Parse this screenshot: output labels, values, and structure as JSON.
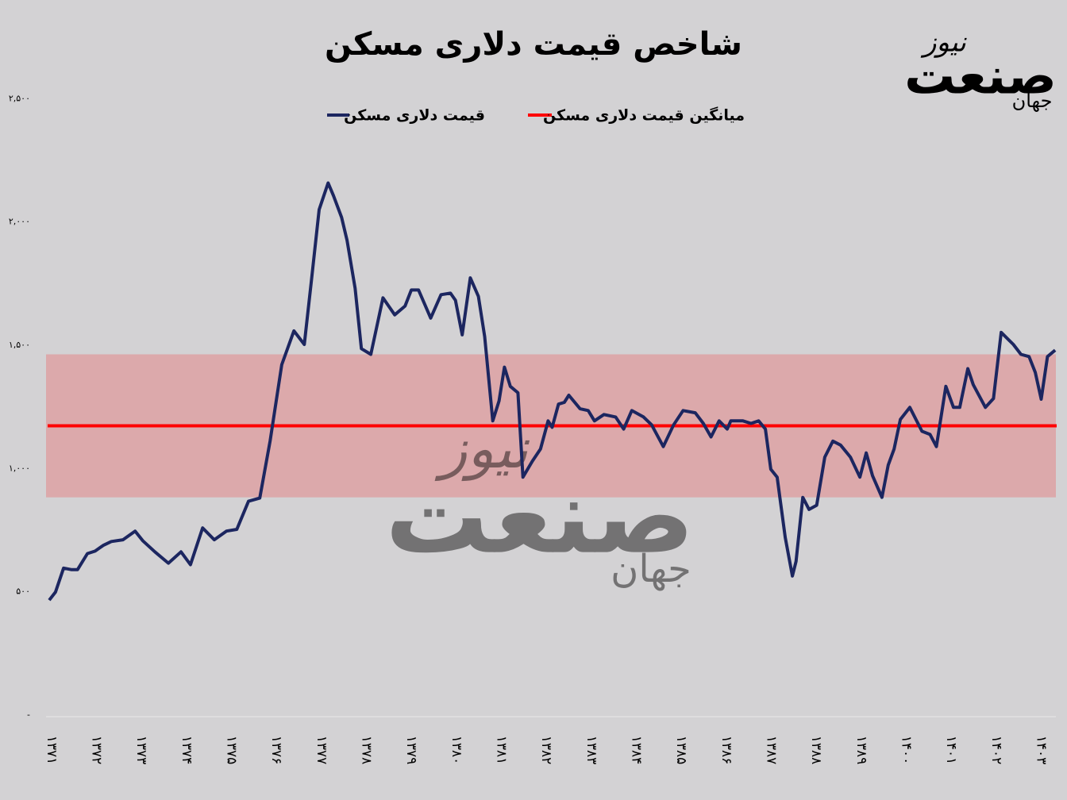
{
  "chart_data": {
    "type": "line",
    "title": "شاخص قیمت دلاری مسکن",
    "logo": {
      "main": "صنعت",
      "sub": "نیوز",
      "prefix": "جهان"
    },
    "xlim": [
      -0.12,
      22.45
    ],
    "xticks": [
      {
        "value": 0,
        "label": "۱۳۷۱"
      },
      {
        "value": 1,
        "label": "۱۳۷۲"
      },
      {
        "value": 2,
        "label": "۱۳۷۳"
      },
      {
        "value": 3,
        "label": "۱۳۷۴"
      },
      {
        "value": 4,
        "label": "۱۳۷۵"
      },
      {
        "value": 5,
        "label": "۱۳۷۶"
      },
      {
        "value": 6,
        "label": "۱۳۷۷"
      },
      {
        "value": 7,
        "label": "۱۳۷۸"
      },
      {
        "value": 8,
        "label": "۱۳۷۹"
      },
      {
        "value": 9,
        "label": "۱۳۸۰"
      },
      {
        "value": 10,
        "label": "۱۳۸۱"
      },
      {
        "value": 11,
        "label": "۱۳۸۲"
      },
      {
        "value": 12,
        "label": "۱۳۸۳"
      },
      {
        "value": 13,
        "label": "۱۳۸۴"
      },
      {
        "value": 14,
        "label": "۱۳۸۵"
      },
      {
        "value": 15,
        "label": "۱۳۸۶"
      },
      {
        "value": 16,
        "label": "۱۳۸۷"
      },
      {
        "value": 17,
        "label": "۱۳۸۸"
      },
      {
        "value": 18,
        "label": "۱۳۸۹"
      },
      {
        "value": 19,
        "label": "۱۴۰۰"
      },
      {
        "value": 20,
        "label": "۱۴۰۱"
      },
      {
        "value": 21,
        "label": "۱۴۰۲"
      },
      {
        "value": 22,
        "label": "۱۴۰۳"
      }
    ],
    "ylim": [
      0,
      2600
    ],
    "yticks": [
      {
        "value": 0,
        "label": "-"
      },
      {
        "value": 500,
        "label": "۵۰۰"
      },
      {
        "value": 1000,
        "label": "۱,۰۰۰"
      },
      {
        "value": 1500,
        "label": "۱,۵۰۰"
      },
      {
        "value": 2000,
        "label": "۲,۰۰۰"
      },
      {
        "value": 2500,
        "label": "۲,۵۰۰"
      }
    ],
    "band": [
      883,
      1463
    ],
    "band_color": "#dca9ab",
    "average": {
      "name": "میانگین قیمت دلاری مسکن",
      "color": "#ff0000",
      "value": 1173
    },
    "x": [
      -0.05,
      0.09,
      0.27,
      0.44,
      0.58,
      0.8,
      0.97,
      1.15,
      1.33,
      1.59,
      1.86,
      2.03,
      2.3,
      2.6,
      2.88,
      3.09,
      3.36,
      3.62,
      3.89,
      4.12,
      4.38,
      4.63,
      4.86,
      5.12,
      5.39,
      5.62,
      5.78,
      5.95,
      6.15,
      6.27,
      6.45,
      6.57,
      6.75,
      6.89,
      7.1,
      7.37,
      7.63,
      7.86,
      8.0,
      8.16,
      8.43,
      8.66,
      8.87,
      8.98,
      9.13,
      9.31,
      9.49,
      9.63,
      9.81,
      9.95,
      10.07,
      10.2,
      10.37,
      10.48,
      10.69,
      10.87,
      11.04,
      11.13,
      11.27,
      11.4,
      11.5,
      11.75,
      11.93,
      12.07,
      12.28,
      12.54,
      12.72,
      12.9,
      13.16,
      13.34,
      13.6,
      13.83,
      14.04,
      14.31,
      14.49,
      14.66,
      14.84,
      15.02,
      15.1,
      15.37,
      15.55,
      15.72,
      15.87,
      15.99,
      16.13,
      16.31,
      16.47,
      16.55,
      16.7,
      16.84,
      17.01,
      17.19,
      17.37,
      17.54,
      17.76,
      17.97,
      18.11,
      18.25,
      18.46,
      18.6,
      18.73,
      18.87,
      19.08,
      19.35,
      19.53,
      19.67,
      19.88,
      20.05,
      20.19,
      20.37,
      20.49,
      20.76,
      20.94,
      21.11,
      21.38,
      21.55,
      21.73,
      21.87,
      22.0,
      22.14,
      22.31
    ],
    "series": [
      {
        "name": "قیمت دلاری مسکن",
        "color": "#1c2660",
        "values": [
          466,
          499,
          596,
          590,
          590,
          655,
          665,
          688,
          704,
          711,
          746,
          707,
          662,
          616,
          662,
          610,
          759,
          711,
          746,
          753,
          867,
          880,
          1111,
          1421,
          1558,
          1503,
          1763,
          2050,
          2158,
          2106,
          2018,
          1926,
          1731,
          1486,
          1463,
          1692,
          1623,
          1659,
          1724,
          1724,
          1610,
          1705,
          1711,
          1682,
          1542,
          1773,
          1698,
          1535,
          1193,
          1274,
          1411,
          1333,
          1307,
          965,
          1030,
          1079,
          1193,
          1167,
          1261,
          1268,
          1297,
          1242,
          1235,
          1193,
          1219,
          1209,
          1160,
          1235,
          1209,
          1177,
          1089,
          1177,
          1235,
          1226,
          1183,
          1128,
          1193,
          1160,
          1193,
          1193,
          1183,
          1193,
          1160,
          997,
          965,
          720,
          564,
          623,
          883,
          834,
          851,
          1046,
          1111,
          1095,
          1046,
          965,
          1063,
          971,
          883,
          1014,
          1079,
          1199,
          1248,
          1151,
          1138,
          1089,
          1333,
          1248,
          1248,
          1405,
          1340,
          1248,
          1284,
          1552,
          1503,
          1463,
          1454,
          1389,
          1281,
          1454,
          1480
        ]
      }
    ]
  }
}
